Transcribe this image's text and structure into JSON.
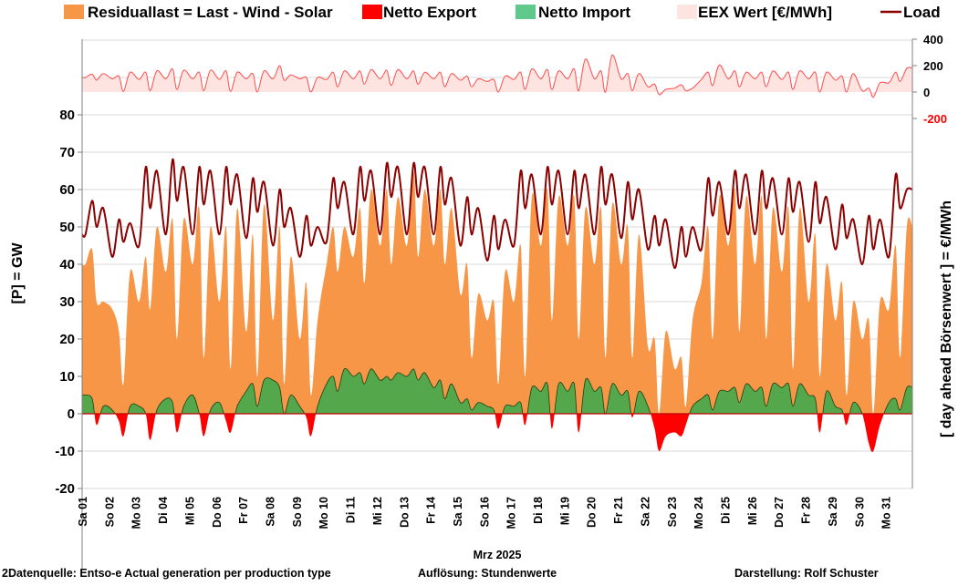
{
  "chart_data": {
    "type": "area",
    "title": "",
    "xlabel": "Mrz 2025",
    "ylabel": "[P]  =  GW",
    "ylabel_right": "[ day ahead Börsenwert ]  =  €/MWh",
    "ylim": [
      -20,
      100
    ],
    "yticks": [
      -20,
      -10,
      0,
      10,
      20,
      30,
      40,
      50,
      60,
      70,
      80
    ],
    "ylim_right": [
      -200,
      400
    ],
    "yticks_right": [
      400,
      200,
      0,
      -200
    ],
    "grid": true,
    "legend_position": "top",
    "x_tick_labels": [
      "Sa 01",
      "So 02",
      "Mo 03",
      "Di 04",
      "Mi 05",
      "Do 06",
      "Fr 07",
      "Sa 08",
      "So 09",
      "Mo 10",
      "Di 11",
      "Mi 12",
      "Do 13",
      "Fr 14",
      "Sa 15",
      "So 16",
      "Mo 17",
      "Di 18",
      "Mi 19",
      "Do 20",
      "Fr 21",
      "Sa 22",
      "So 23",
      "Mo 24",
      "Di 25",
      "Mi 26",
      "Do 27",
      "Fr 28",
      "Sa 29",
      "So 30",
      "Mo 31"
    ],
    "sample_hours": [
      3,
      9,
      13,
      19
    ],
    "legend": [
      {
        "key": "residual",
        "label": "Residuallast  =  Last - Wind - Solar",
        "color": "#f79646",
        "kind": "area"
      },
      {
        "key": "export",
        "label": "Netto Export",
        "color": "#ff0000",
        "kind": "area"
      },
      {
        "key": "import",
        "label": "Netto Import",
        "color": "#5ec98a",
        "kind": "area"
      },
      {
        "key": "price",
        "label": "EEX Wert [€/MWh]",
        "color": "#fde4e1",
        "kind": "area"
      },
      {
        "key": "load",
        "label": "Load",
        "color": "#8b0000",
        "kind": "line"
      }
    ],
    "series": [
      {
        "name": "Load",
        "unit": "GW",
        "values": [
          48,
          57,
          50,
          55,
          42,
          52,
          46,
          51,
          45,
          66,
          55,
          65,
          48,
          68,
          57,
          66,
          48,
          66,
          56,
          65,
          48,
          66,
          56,
          64,
          47,
          63,
          54,
          62,
          45,
          60,
          50,
          55,
          42,
          53,
          45,
          50,
          46,
          63,
          55,
          62,
          48,
          66,
          57,
          65,
          48,
          67,
          58,
          66,
          48,
          67,
          58,
          66,
          48,
          66,
          56,
          63,
          45,
          58,
          48,
          55,
          41,
          53,
          44,
          52,
          45,
          65,
          55,
          64,
          48,
          66,
          56,
          65,
          48,
          65,
          55,
          64,
          48,
          66,
          56,
          64,
          47,
          62,
          52,
          60,
          44,
          53,
          45,
          52,
          39,
          50,
          42,
          50,
          44,
          63,
          53,
          62,
          48,
          65,
          55,
          64,
          48,
          65,
          55,
          63,
          48,
          63,
          54,
          62,
          46,
          62,
          51,
          58,
          44,
          56,
          47,
          52,
          40,
          53,
          44,
          52,
          42,
          64,
          55,
          60
        ]
      },
      {
        "name": "Residuallast",
        "unit": "GW",
        "values": [
          40,
          44,
          30,
          30,
          28,
          22,
          8,
          38,
          30,
          42,
          28,
          50,
          38,
          52,
          20,
          52,
          40,
          55,
          15,
          50,
          30,
          50,
          12,
          55,
          22,
          48,
          10,
          56,
          25,
          50,
          8,
          42,
          20,
          35,
          5,
          25,
          40,
          50,
          38,
          50,
          42,
          55,
          35,
          60,
          45,
          60,
          40,
          58,
          45,
          65,
          42,
          60,
          45,
          60,
          40,
          55,
          32,
          40,
          15,
          32,
          25,
          30,
          8,
          38,
          30,
          45,
          10,
          58,
          45,
          60,
          25,
          58,
          45,
          58,
          20,
          55,
          40,
          55,
          15,
          56,
          40,
          50,
          15,
          48,
          18,
          20,
          0,
          22,
          12,
          15,
          2,
          25,
          35,
          50,
          20,
          58,
          45,
          60,
          22,
          58,
          40,
          58,
          20,
          55,
          38,
          55,
          12,
          55,
          30,
          48,
          10,
          40,
          25,
          35,
          5,
          30,
          20,
          25,
          0,
          30,
          28,
          45,
          15,
          50
        ]
      },
      {
        "name": "Netto Import / Export",
        "unit": "GW",
        "values": [
          5,
          4,
          -3,
          2,
          1,
          -2,
          -6,
          2,
          2,
          0,
          -7,
          1,
          4,
          3,
          -5,
          2,
          5,
          0,
          -6,
          1,
          3,
          -2,
          -5,
          2,
          6,
          8,
          2,
          9,
          9,
          7,
          0,
          5,
          2,
          -1,
          -6,
          2,
          8,
          10,
          6,
          12,
          10,
          11,
          8,
          12,
          9,
          10,
          9,
          11,
          10,
          12,
          9,
          11,
          7,
          9,
          4,
          8,
          3,
          4,
          1,
          3,
          2,
          1,
          -4,
          2,
          2,
          3,
          -3,
          7,
          6,
          8,
          -4,
          8,
          6,
          8,
          -5,
          9,
          6,
          7,
          0,
          8,
          5,
          6,
          -1,
          6,
          2,
          -4,
          -10,
          -6,
          -5,
          -6,
          -3,
          2,
          4,
          5,
          1,
          6,
          6,
          7,
          3,
          8,
          6,
          7,
          2,
          8,
          7,
          8,
          2,
          8,
          5,
          4,
          -5,
          6,
          2,
          1,
          -3,
          3,
          0,
          -8,
          -10,
          -3,
          3,
          4,
          1,
          7
        ]
      },
      {
        "name": "EEX Wert",
        "unit": "€/MWh",
        "values": [
          110,
          135,
          90,
          140,
          100,
          120,
          5,
          150,
          95,
          150,
          10,
          160,
          100,
          175,
          20,
          165,
          100,
          150,
          10,
          165,
          95,
          160,
          5,
          150,
          100,
          140,
          0,
          160,
          100,
          200,
          90,
          130,
          100,
          110,
          0,
          110,
          95,
          150,
          40,
          160,
          100,
          160,
          60,
          170,
          100,
          165,
          50,
          170,
          100,
          160,
          60,
          150,
          100,
          150,
          40,
          140,
          90,
          120,
          40,
          100,
          80,
          95,
          0,
          120,
          95,
          150,
          20,
          175,
          100,
          170,
          20,
          160,
          100,
          175,
          10,
          250,
          100,
          160,
          0,
          280,
          100,
          140,
          10,
          140,
          40,
          60,
          -20,
          20,
          30,
          55,
          10,
          30,
          95,
          150,
          50,
          205,
          100,
          160,
          40,
          150,
          100,
          150,
          40,
          160,
          95,
          150,
          20,
          160,
          100,
          150,
          0,
          150,
          90,
          120,
          0,
          140,
          10,
          30,
          -40,
          70,
          70,
          150,
          80,
          180
        ]
      }
    ]
  },
  "footer": {
    "source": "2Datenquelle: Entso-e  Actual generation per production type",
    "resolution": "Auflösung: Stundenwerte",
    "author": "Darstellung:  Rolf Schuster"
  }
}
